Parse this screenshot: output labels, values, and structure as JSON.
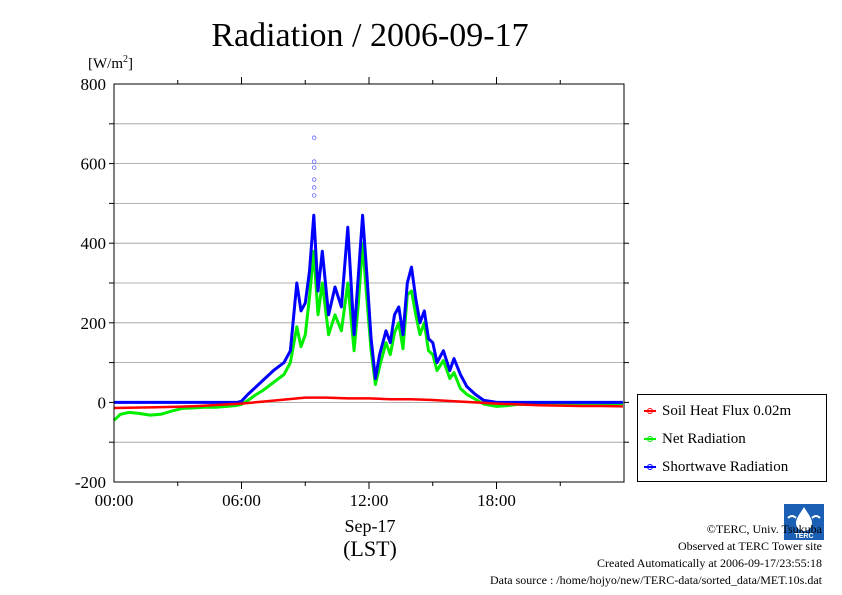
{
  "chart_data": {
    "type": "line",
    "title": "Radiation / 2006-09-17",
    "ylabel_unit": "[W/m",
    "ylabel_sup": "2",
    "ylabel_close": "]",
    "ylim": [
      -200,
      800
    ],
    "yticks": [
      -200,
      0,
      200,
      400,
      600,
      800
    ],
    "xlim": [
      0,
      24
    ],
    "xticks": [
      0,
      6,
      12,
      18
    ],
    "xtick_labels": [
      "00:00",
      "06:00",
      "12:00",
      "18:00"
    ],
    "xlabel_date": "Sep-17",
    "xlabel_tz": "(LST)",
    "grid": true,
    "legend_position": "right",
    "series": [
      {
        "name": "Soil Heat Flux 0.02m",
        "color": "#ff0000",
        "points": [
          [
            0,
            -14
          ],
          [
            1,
            -13
          ],
          [
            2,
            -12
          ],
          [
            3,
            -11
          ],
          [
            4,
            -9
          ],
          [
            5,
            -6
          ],
          [
            6,
            -3
          ],
          [
            7,
            2
          ],
          [
            8,
            7
          ],
          [
            9,
            12
          ],
          [
            10,
            12
          ],
          [
            11,
            10
          ],
          [
            12,
            10
          ],
          [
            13,
            8
          ],
          [
            14,
            8
          ],
          [
            15,
            6
          ],
          [
            16,
            3
          ],
          [
            17,
            0
          ],
          [
            18,
            -3
          ],
          [
            19,
            -5
          ],
          [
            20,
            -7
          ],
          [
            21,
            -8
          ],
          [
            22,
            -9
          ],
          [
            23,
            -9
          ],
          [
            23.95,
            -10
          ]
        ]
      },
      {
        "name": "Net Radiation",
        "color": "#00ee00",
        "points": [
          [
            0,
            -45
          ],
          [
            0.3,
            -30
          ],
          [
            0.7,
            -25
          ],
          [
            1.2,
            -28
          ],
          [
            1.7,
            -32
          ],
          [
            2.2,
            -30
          ],
          [
            2.7,
            -22
          ],
          [
            3.2,
            -15
          ],
          [
            3.7,
            -14
          ],
          [
            4.2,
            -12
          ],
          [
            4.8,
            -12
          ],
          [
            5.3,
            -10
          ],
          [
            5.7,
            -8
          ],
          [
            6,
            -5
          ],
          [
            6.3,
            5
          ],
          [
            6.7,
            20
          ],
          [
            7,
            30
          ],
          [
            7.5,
            50
          ],
          [
            8,
            70
          ],
          [
            8.3,
            100
          ],
          [
            8.6,
            190
          ],
          [
            8.8,
            140
          ],
          [
            9,
            170
          ],
          [
            9.2,
            265
          ],
          [
            9.4,
            380
          ],
          [
            9.6,
            220
          ],
          [
            9.8,
            300
          ],
          [
            10.1,
            170
          ],
          [
            10.4,
            220
          ],
          [
            10.7,
            180
          ],
          [
            11,
            300
          ],
          [
            11.3,
            130
          ],
          [
            11.5,
            250
          ],
          [
            11.7,
            400
          ],
          [
            11.9,
            260
          ],
          [
            12.1,
            130
          ],
          [
            12.3,
            45
          ],
          [
            12.5,
            90
          ],
          [
            12.8,
            150
          ],
          [
            13,
            120
          ],
          [
            13.2,
            175
          ],
          [
            13.4,
            200
          ],
          [
            13.6,
            135
          ],
          [
            13.8,
            270
          ],
          [
            14,
            280
          ],
          [
            14.2,
            220
          ],
          [
            14.4,
            170
          ],
          [
            14.6,
            200
          ],
          [
            14.8,
            130
          ],
          [
            15,
            120
          ],
          [
            15.2,
            80
          ],
          [
            15.5,
            105
          ],
          [
            15.8,
            60
          ],
          [
            16,
            75
          ],
          [
            16.3,
            35
          ],
          [
            16.6,
            20
          ],
          [
            17,
            8
          ],
          [
            17.4,
            -4
          ],
          [
            18,
            -10
          ],
          [
            18.5,
            -8
          ],
          [
            19,
            -5
          ],
          [
            20,
            -5
          ],
          [
            21,
            -4
          ],
          [
            22,
            -3
          ],
          [
            23,
            -3
          ],
          [
            23.95,
            -3
          ]
        ]
      },
      {
        "name": "Shortwave Radiation",
        "color": "#0000ff",
        "points": [
          [
            0,
            0
          ],
          [
            1,
            0
          ],
          [
            2,
            0
          ],
          [
            3,
            0
          ],
          [
            4,
            0
          ],
          [
            5,
            0
          ],
          [
            5.8,
            0
          ],
          [
            6,
            3
          ],
          [
            6.3,
            20
          ],
          [
            6.7,
            40
          ],
          [
            7,
            55
          ],
          [
            7.5,
            80
          ],
          [
            8,
            100
          ],
          [
            8.3,
            130
          ],
          [
            8.6,
            300
          ],
          [
            8.8,
            230
          ],
          [
            9,
            250
          ],
          [
            9.2,
            330
          ],
          [
            9.4,
            470
          ],
          [
            9.6,
            280
          ],
          [
            9.8,
            380
          ],
          [
            10.1,
            220
          ],
          [
            10.4,
            290
          ],
          [
            10.7,
            240
          ],
          [
            11,
            440
          ],
          [
            11.3,
            170
          ],
          [
            11.5,
            320
          ],
          [
            11.7,
            470
          ],
          [
            11.9,
            320
          ],
          [
            12.1,
            160
          ],
          [
            12.3,
            60
          ],
          [
            12.5,
            120
          ],
          [
            12.8,
            180
          ],
          [
            13,
            150
          ],
          [
            13.2,
            220
          ],
          [
            13.4,
            240
          ],
          [
            13.6,
            170
          ],
          [
            13.8,
            300
          ],
          [
            14,
            340
          ],
          [
            14.2,
            260
          ],
          [
            14.4,
            200
          ],
          [
            14.6,
            230
          ],
          [
            14.8,
            160
          ],
          [
            15,
            150
          ],
          [
            15.2,
            100
          ],
          [
            15.5,
            130
          ],
          [
            15.8,
            80
          ],
          [
            16,
            110
          ],
          [
            16.3,
            70
          ],
          [
            16.6,
            40
          ],
          [
            17,
            20
          ],
          [
            17.4,
            5
          ],
          [
            17.8,
            2
          ],
          [
            18,
            0
          ],
          [
            19,
            0
          ],
          [
            20,
            0
          ],
          [
            21,
            0
          ],
          [
            22,
            0
          ],
          [
            23,
            0
          ],
          [
            23.95,
            0
          ]
        ]
      }
    ],
    "outliers": [
      [
        9.42,
        665
      ],
      [
        9.42,
        605
      ],
      [
        9.42,
        590
      ],
      [
        9.42,
        560
      ],
      [
        9.42,
        540
      ],
      [
        9.42,
        520
      ]
    ]
  },
  "footer": {
    "copyright": "©TERC, Univ. Tsukuba",
    "observed": "Observed at TERC Tower site",
    "created": "Created Automatically at 2006-09-17/23:55:18",
    "source": "Data source : /home/hojyo/new/TERC-data/sorted_data/MET.10s.dat"
  },
  "logo_text": "TERC"
}
